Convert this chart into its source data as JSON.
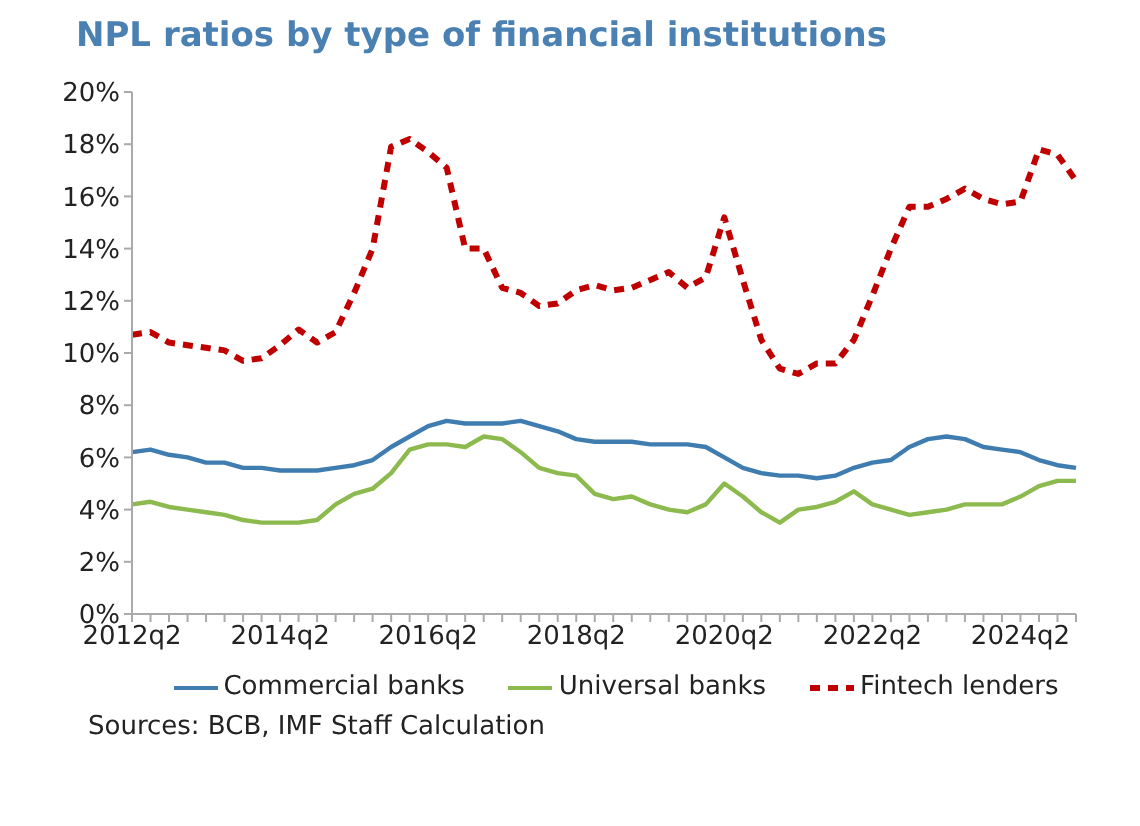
{
  "chart_data": {
    "type": "line",
    "title": "NPL ratios by type of financial institutions",
    "categories": [
      "2012q2",
      null,
      null,
      null,
      null,
      null,
      null,
      null,
      "2014q2",
      null,
      null,
      null,
      null,
      null,
      null,
      null,
      "2016q2",
      null,
      null,
      null,
      null,
      null,
      null,
      null,
      "2018q2",
      null,
      null,
      null,
      null,
      null,
      null,
      null,
      "2020q2",
      null,
      null,
      null,
      null,
      null,
      null,
      null,
      "2022q2",
      null,
      null,
      null,
      null,
      null,
      null,
      null,
      "2024q2",
      null,
      null,
      null
    ],
    "series": [
      {
        "name": "Commercial banks",
        "color": "#3f7cb0",
        "line_style": "solid",
        "values": [
          6.2,
          6.3,
          6.1,
          6.0,
          5.8,
          5.8,
          5.6,
          5.6,
          5.5,
          5.5,
          5.5,
          5.6,
          5.7,
          5.9,
          6.4,
          6.8,
          7.2,
          7.4,
          7.3,
          7.3,
          7.3,
          7.4,
          7.2,
          7.0,
          6.7,
          6.6,
          6.6,
          6.6,
          6.5,
          6.5,
          6.5,
          6.4,
          6.0,
          5.6,
          5.4,
          5.3,
          5.3,
          5.2,
          5.3,
          5.6,
          5.8,
          5.9,
          6.4,
          6.7,
          6.8,
          6.7,
          6.4,
          6.3,
          6.2,
          5.9,
          5.7,
          5.6
        ]
      },
      {
        "name": "Universal banks",
        "color": "#8dba4e",
        "line_style": "solid",
        "values": [
          4.2,
          4.3,
          4.1,
          4.0,
          3.9,
          3.8,
          3.6,
          3.5,
          3.5,
          3.5,
          3.6,
          4.2,
          4.6,
          4.8,
          5.4,
          6.3,
          6.5,
          6.5,
          6.4,
          6.8,
          6.7,
          6.2,
          5.6,
          5.4,
          5.3,
          4.6,
          4.4,
          4.5,
          4.2,
          4.0,
          3.9,
          4.2,
          5.0,
          4.5,
          3.9,
          3.5,
          4.0,
          4.1,
          4.3,
          4.7,
          4.2,
          4.0,
          3.8,
          3.9,
          4.0,
          4.2,
          4.2,
          4.2,
          4.5,
          4.9,
          5.1,
          5.1
        ]
      },
      {
        "name": "Fintech lenders",
        "color": "#c00000",
        "line_style": "dashed",
        "values": [
          10.7,
          10.8,
          10.4,
          10.3,
          10.2,
          10.1,
          9.7,
          9.8,
          10.3,
          10.9,
          10.4,
          10.8,
          12.3,
          14.0,
          17.9,
          18.2,
          17.7,
          17.1,
          14.0,
          14.0,
          12.5,
          12.3,
          11.8,
          11.9,
          12.4,
          12.6,
          12.4,
          12.5,
          12.8,
          13.1,
          12.5,
          12.9,
          15.2,
          12.8,
          10.5,
          9.4,
          9.2,
          9.6,
          9.6,
          10.5,
          12.2,
          14.0,
          15.6,
          15.6,
          15.9,
          16.3,
          15.9,
          15.7,
          15.8,
          17.8,
          17.6,
          16.6
        ]
      }
    ],
    "ylim": [
      0,
      20
    ],
    "yticks": [
      {
        "value": 0,
        "label": "0%"
      },
      {
        "value": 2,
        "label": "2%"
      },
      {
        "value": 4,
        "label": "4%"
      },
      {
        "value": 6,
        "label": "6%"
      },
      {
        "value": 8,
        "label": "8%"
      },
      {
        "value": 10,
        "label": "10%"
      },
      {
        "value": 12,
        "label": "12%"
      },
      {
        "value": 14,
        "label": "14%"
      },
      {
        "value": 16,
        "label": "16%"
      },
      {
        "value": 18,
        "label": "18%"
      },
      {
        "value": 20,
        "label": "20%"
      }
    ],
    "grid": false,
    "legend": "bottom",
    "marker": "none",
    "annotations": [
      "Sources: BCB, IMF Staff Calculation"
    ]
  }
}
